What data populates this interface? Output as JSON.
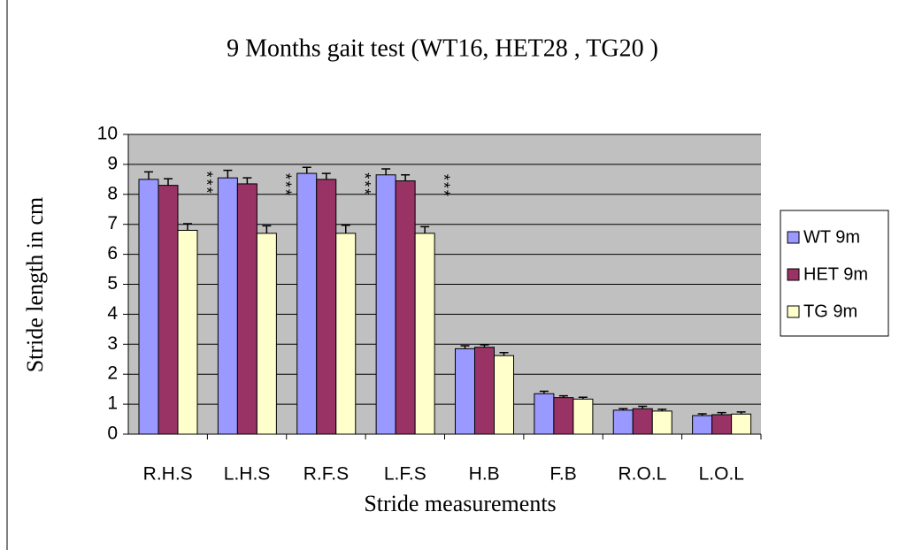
{
  "chart_data": {
    "type": "bar",
    "title": "9 Months gait test  (WT16, HET28 , TG20 )",
    "x_label": "Stride measurements",
    "y_label": "Stride length in cm",
    "categories": [
      "R.H.S",
      "L.H.S",
      "R.F.S",
      "L.F.S",
      "H.B",
      "F.B",
      "R.O.L",
      "L.O.L"
    ],
    "series": [
      {
        "name": "WT 9m",
        "color": "#9999ff",
        "values": [
          8.5,
          8.55,
          8.7,
          8.65,
          2.85,
          1.35,
          0.8,
          0.62
        ],
        "errors": [
          0.25,
          0.25,
          0.2,
          0.2,
          0.1,
          0.08,
          0.05,
          0.06
        ]
      },
      {
        "name": "HET 9m",
        "color": "#993366",
        "values": [
          8.3,
          8.35,
          8.5,
          8.45,
          2.9,
          1.22,
          0.85,
          0.65
        ],
        "errors": [
          0.22,
          0.2,
          0.2,
          0.2,
          0.08,
          0.06,
          0.08,
          0.07
        ]
      },
      {
        "name": "TG 9m",
        "color": "#ffffcc",
        "values": [
          6.8,
          6.7,
          6.7,
          6.7,
          2.62,
          1.17,
          0.77,
          0.67
        ],
        "errors": [
          0.22,
          0.25,
          0.27,
          0.22,
          0.1,
          0.06,
          0.06,
          0.07
        ]
      }
    ],
    "annotations": [
      "***",
      "***",
      "***",
      "***"
    ],
    "ylim": [
      0,
      10
    ],
    "yticks": [
      0,
      1,
      2,
      3,
      4,
      5,
      6,
      7,
      8,
      9,
      10
    ],
    "grid": true,
    "plot_background": "#c0c0c0",
    "legend": "right"
  }
}
